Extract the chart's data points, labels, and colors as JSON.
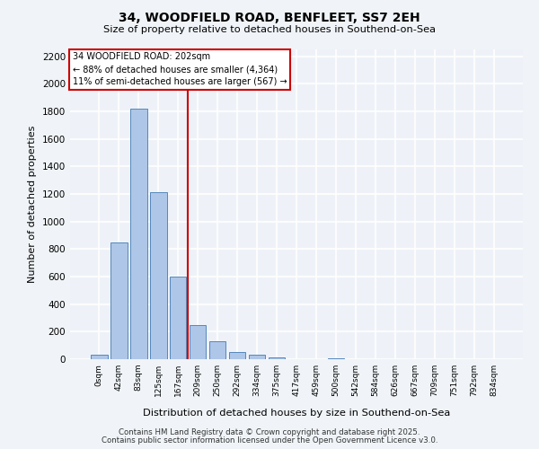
{
  "title1": "34, WOODFIELD ROAD, BENFLEET, SS7 2EH",
  "title2": "Size of property relative to detached houses in Southend-on-Sea",
  "xlabel": "Distribution of detached houses by size in Southend-on-Sea",
  "ylabel": "Number of detached properties",
  "bar_labels": [
    "0sqm",
    "42sqm",
    "83sqm",
    "125sqm",
    "167sqm",
    "209sqm",
    "250sqm",
    "292sqm",
    "334sqm",
    "375sqm",
    "417sqm",
    "459sqm",
    "500sqm",
    "542sqm",
    "584sqm",
    "626sqm",
    "667sqm",
    "709sqm",
    "751sqm",
    "792sqm",
    "834sqm"
  ],
  "bar_values": [
    30,
    850,
    1820,
    1210,
    600,
    250,
    130,
    55,
    30,
    15,
    0,
    0,
    5,
    0,
    0,
    0,
    0,
    0,
    0,
    0,
    0
  ],
  "bar_color": "#aec6e8",
  "bar_edge_color": "#5588bb",
  "annotation_text1": "34 WOODFIELD ROAD: 202sqm",
  "annotation_text2": "← 88% of detached houses are smaller (4,364)",
  "annotation_text3": "11% of semi-detached houses are larger (567) →",
  "annotation_box_color": "#ffffff",
  "annotation_box_edge": "#cc0000",
  "vline_color": "#cc0000",
  "vline_x": 4.5,
  "ylim": [
    0,
    2250
  ],
  "yticks": [
    0,
    200,
    400,
    600,
    800,
    1000,
    1200,
    1400,
    1600,
    1800,
    2000,
    2200
  ],
  "bg_color": "#eef2f8",
  "grid_color": "#ffffff",
  "footer1": "Contains HM Land Registry data © Crown copyright and database right 2025.",
  "footer2": "Contains public sector information licensed under the Open Government Licence v3.0."
}
